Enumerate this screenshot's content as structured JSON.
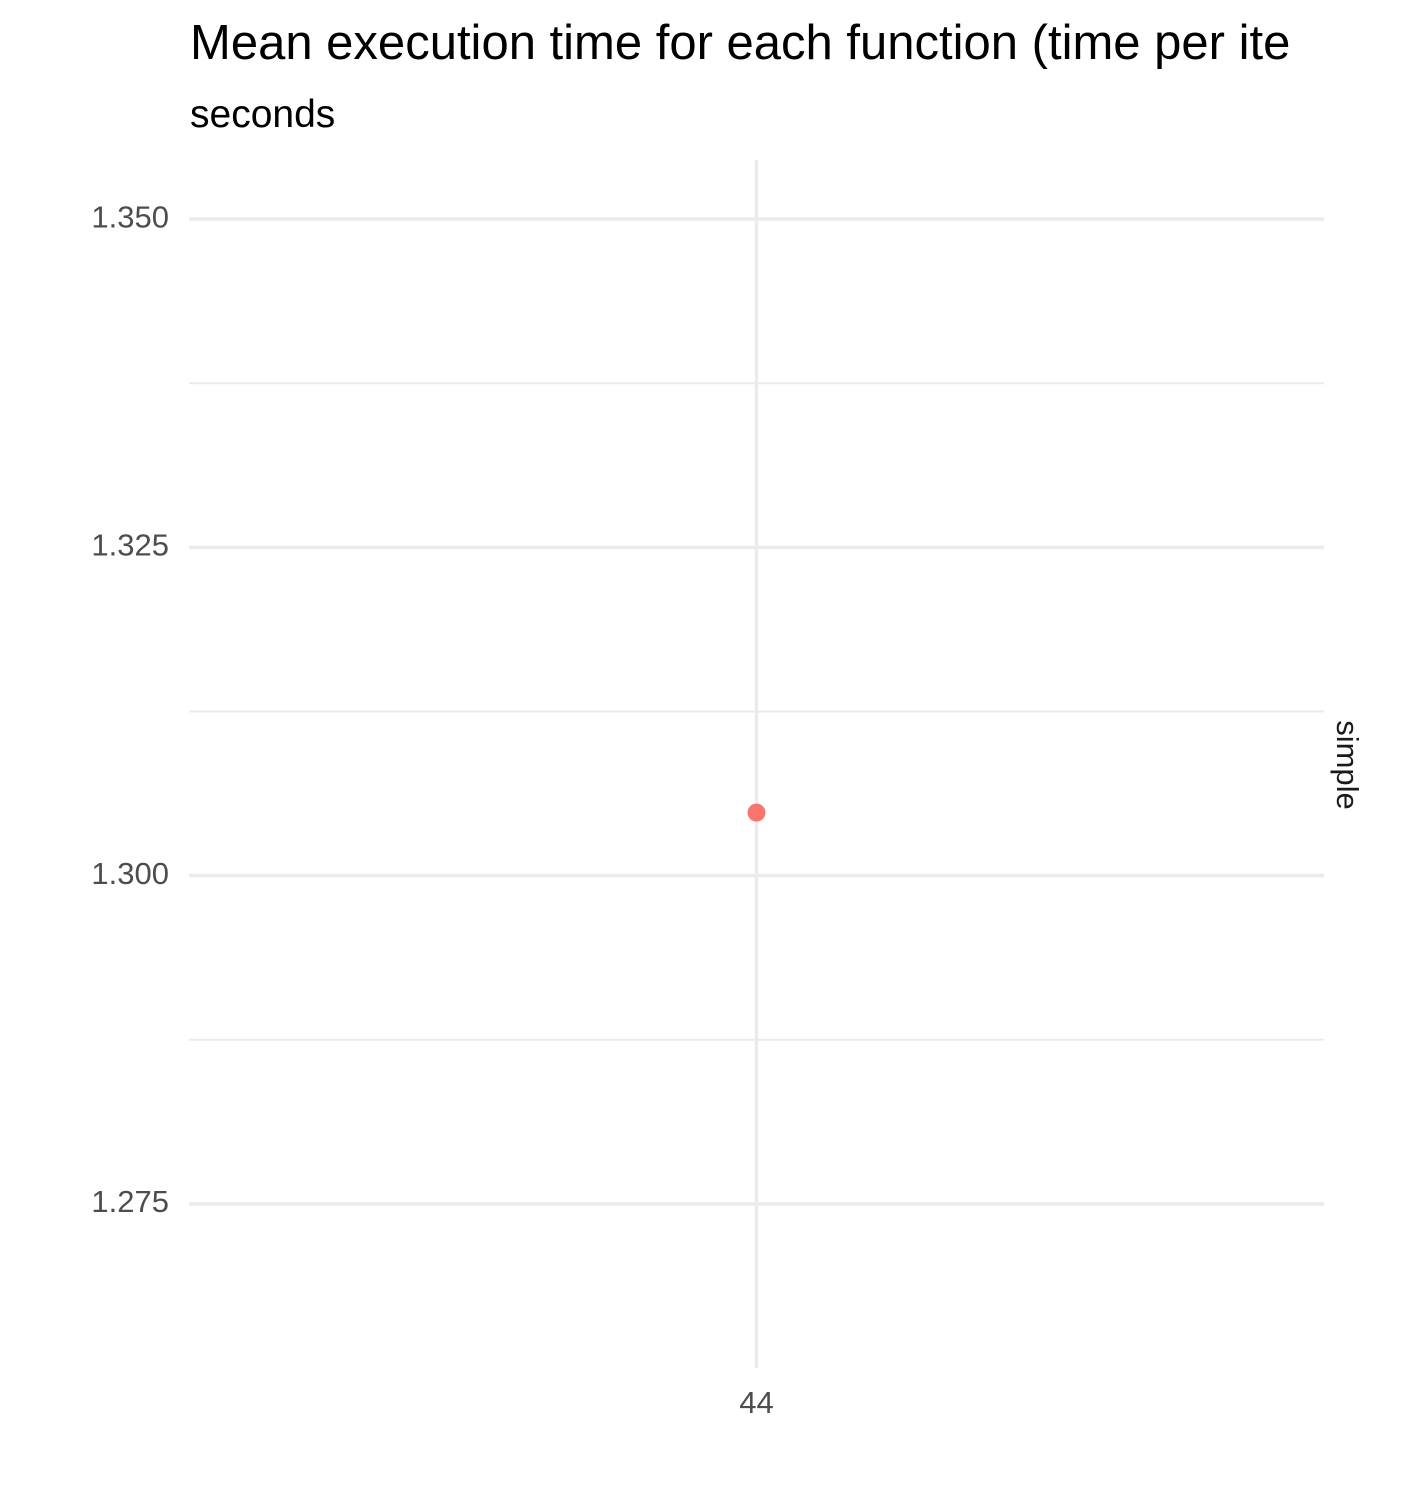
{
  "chart_data": {
    "type": "scatter",
    "title": "Mean execution time for each function (time per ite",
    "subtitle": "seconds",
    "xlabel": "",
    "ylabel": "",
    "x_ticks": [
      "44"
    ],
    "y_ticks": [
      "1.275",
      "1.300",
      "1.325",
      "1.350"
    ],
    "ylim": [
      1.2625,
      1.3545
    ],
    "series": [
      {
        "x": [
          "44"
        ],
        "values": [
          1.3048
        ],
        "color": "#F8766D"
      }
    ],
    "facet_label": "simple",
    "grid": true,
    "legend": "none"
  }
}
